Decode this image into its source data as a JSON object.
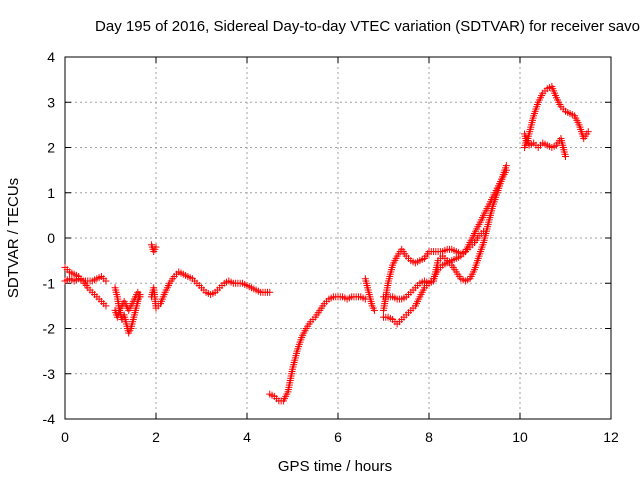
{
  "chart_data": {
    "type": "scatter",
    "title": "Day 195 of 2016, Sidereal Day-to-day VTEC variation (SDTVAR) for receiver savo",
    "xlabel": "GPS time / hours",
    "ylabel": "SDTVAR / TECUs",
    "xlim": [
      0,
      12
    ],
    "ylim": [
      -4,
      4
    ],
    "xticks": [
      "0",
      "2",
      "4",
      "6",
      "8",
      "10",
      "12"
    ],
    "yticks": [
      "-4",
      "-3",
      "-2",
      "-1",
      "0",
      "1",
      "2",
      "3",
      "4"
    ],
    "grid": true,
    "marker": "+",
    "series_color": "#ff0000",
    "segments": [
      {
        "x": [
          0.0,
          0.1,
          0.2,
          0.3,
          0.4,
          0.5,
          0.6,
          0.7,
          0.8,
          0.9
        ],
        "y": [
          -0.95,
          -0.9,
          -0.95,
          -0.9,
          -0.95,
          -0.95,
          -0.95,
          -0.9,
          -0.85,
          -0.95
        ]
      },
      {
        "x": [
          0.0,
          0.1,
          0.2,
          0.3,
          0.4,
          0.5,
          0.6,
          0.7,
          0.8,
          0.9
        ],
        "y": [
          -0.65,
          -0.75,
          -0.8,
          -0.85,
          -0.95,
          -1.1,
          -1.2,
          -1.3,
          -1.4,
          -1.5
        ]
      },
      {
        "x": [
          1.1,
          1.15,
          1.2,
          1.25,
          1.3,
          1.35,
          1.4,
          1.45,
          1.5,
          1.55,
          1.6,
          1.65
        ],
        "y": [
          -1.1,
          -1.3,
          -1.6,
          -1.8,
          -1.7,
          -1.9,
          -2.1,
          -2.0,
          -1.8,
          -1.6,
          -1.4,
          -1.25
        ]
      },
      {
        "x": [
          1.1,
          1.15,
          1.2,
          1.25,
          1.3,
          1.35,
          1.4,
          1.45,
          1.5,
          1.55,
          1.6,
          1.65
        ],
        "y": [
          -1.6,
          -1.75,
          -1.6,
          -1.5,
          -1.4,
          -1.5,
          -1.6,
          -1.5,
          -1.4,
          -1.3,
          -1.2,
          -1.3
        ]
      },
      {
        "x": [
          1.9,
          1.95,
          2.0
        ],
        "y": [
          -0.15,
          -0.3,
          -0.2
        ]
      },
      {
        "x": [
          1.9,
          1.95,
          2.0,
          2.1,
          2.2,
          2.3,
          2.4,
          2.5,
          2.6,
          2.7,
          2.8,
          2.9,
          3.0,
          3.1,
          3.2,
          3.3,
          3.4,
          3.5,
          3.6,
          3.7,
          3.8,
          3.9,
          4.0,
          4.1,
          4.2,
          4.3,
          4.4,
          4.5
        ],
        "y": [
          -1.3,
          -1.1,
          -1.55,
          -1.45,
          -1.2,
          -1.0,
          -0.85,
          -0.75,
          -0.8,
          -0.85,
          -0.9,
          -1.0,
          -1.1,
          -1.2,
          -1.25,
          -1.2,
          -1.1,
          -1.0,
          -0.95,
          -1.0,
          -1.0,
          -1.0,
          -1.05,
          -1.1,
          -1.15,
          -1.2,
          -1.2,
          -1.2
        ]
      },
      {
        "x": [
          4.5,
          4.6,
          4.7,
          4.8,
          4.9,
          5.0,
          5.1,
          5.2,
          5.3,
          5.4,
          5.5,
          5.6,
          5.7,
          5.8,
          5.9,
          6.0,
          6.1,
          6.2,
          6.3,
          6.4,
          6.5,
          6.6
        ],
        "y": [
          -3.45,
          -3.5,
          -3.6,
          -3.6,
          -3.4,
          -2.9,
          -2.5,
          -2.2,
          -2.0,
          -1.85,
          -1.75,
          -1.6,
          -1.45,
          -1.35,
          -1.3,
          -1.3,
          -1.3,
          -1.35,
          -1.3,
          -1.3,
          -1.3,
          -1.35
        ]
      },
      {
        "x": [
          6.6,
          6.65,
          6.7,
          6.75,
          6.8
        ],
        "y": [
          -0.9,
          -1.1,
          -1.3,
          -1.5,
          -1.6
        ]
      },
      {
        "x": [
          7.0,
          7.1,
          7.2,
          7.3,
          7.4,
          7.5,
          7.6,
          7.7,
          7.8,
          7.9,
          8.0,
          8.1,
          8.2,
          8.3,
          8.4,
          8.5,
          8.6,
          8.7,
          8.8,
          8.9,
          9.0,
          9.1,
          9.2
        ],
        "y": [
          -1.6,
          -1.0,
          -0.6,
          -0.4,
          -0.25,
          -0.4,
          -0.5,
          -0.55,
          -0.5,
          -0.45,
          -0.3,
          -0.3,
          -0.3,
          -0.3,
          -0.25,
          -0.25,
          -0.3,
          -0.35,
          -0.3,
          -0.2,
          -0.1,
          0.05,
          0.15
        ]
      },
      {
        "x": [
          7.0,
          7.1,
          7.2,
          7.3,
          7.4,
          7.5,
          7.6,
          7.7,
          7.8,
          7.9,
          8.0,
          8.1,
          8.2,
          8.3,
          8.4,
          8.5,
          8.6,
          8.7,
          8.8,
          8.9,
          9.0,
          9.1,
          9.2,
          9.3,
          9.4,
          9.5,
          9.6,
          9.7
        ],
        "y": [
          -1.75,
          -1.75,
          -1.8,
          -1.9,
          -1.8,
          -1.7,
          -1.6,
          -1.5,
          -1.3,
          -1.1,
          -1.0,
          -0.95,
          -0.5,
          -0.4,
          -0.5,
          -0.6,
          -0.75,
          -0.9,
          -0.95,
          -0.9,
          -0.7,
          -0.4,
          -0.1,
          0.3,
          0.7,
          1.0,
          1.3,
          1.5
        ]
      },
      {
        "x": [
          7.0,
          7.1,
          7.2,
          7.3,
          7.4,
          7.5,
          7.6,
          7.7,
          7.8,
          7.9,
          8.0,
          8.1,
          8.2,
          8.3,
          8.4,
          8.5,
          8.6,
          8.7,
          8.8,
          8.9,
          9.0,
          9.1,
          9.2,
          9.3,
          9.4,
          9.5,
          9.6,
          9.7
        ],
        "y": [
          -1.3,
          -1.3,
          -1.3,
          -1.35,
          -1.35,
          -1.3,
          -1.2,
          -1.1,
          -1.0,
          -0.95,
          -1.0,
          -0.9,
          -0.7,
          -0.6,
          -0.55,
          -0.5,
          -0.45,
          -0.4,
          -0.3,
          -0.1,
          0.1,
          0.3,
          0.5,
          0.7,
          0.9,
          1.1,
          1.3,
          1.6
        ]
      },
      {
        "x": [
          10.1,
          10.15,
          10.2,
          10.3,
          10.4,
          10.5,
          10.6,
          10.7,
          10.8,
          10.9,
          11.0,
          11.1,
          11.2,
          11.3,
          11.4,
          11.5
        ],
        "y": [
          2.3,
          2.1,
          2.3,
          2.7,
          3.0,
          3.2,
          3.3,
          3.35,
          3.1,
          2.9,
          2.8,
          2.75,
          2.7,
          2.5,
          2.2,
          2.35
        ]
      },
      {
        "x": [
          10.1,
          10.15,
          10.2,
          10.3,
          10.4,
          10.5,
          10.6,
          10.7,
          10.8,
          10.9,
          11.0
        ],
        "y": [
          2.0,
          2.2,
          2.05,
          2.1,
          2.0,
          2.1,
          2.05,
          2.0,
          2.05,
          2.2,
          1.8
        ]
      }
    ]
  }
}
